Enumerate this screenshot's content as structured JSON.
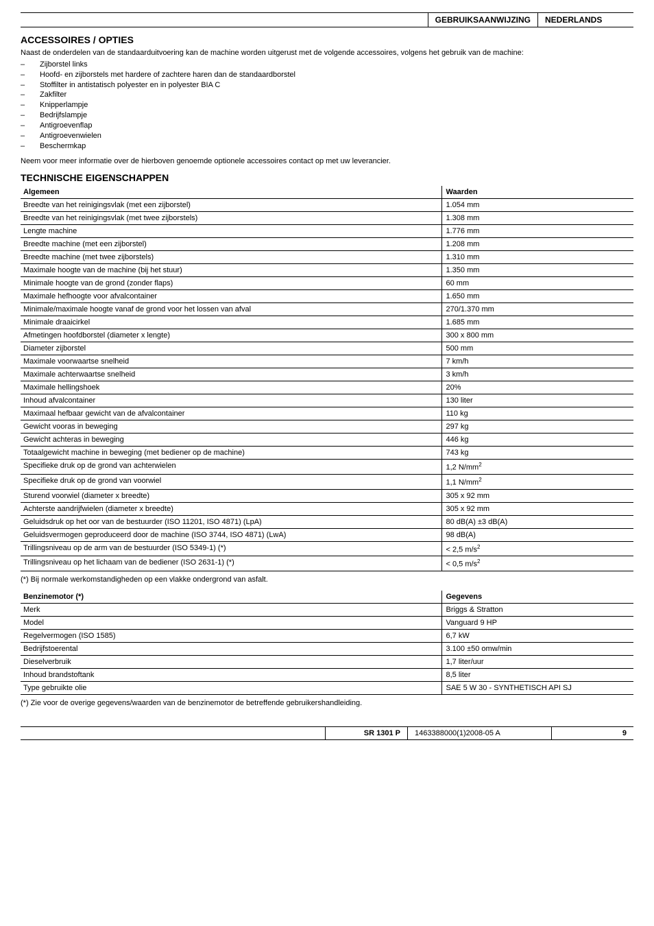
{
  "header": {
    "title1": "GEBRUIKSAANWIJZING",
    "title2": "NEDERLANDS"
  },
  "sections": {
    "accessories_title": "ACCESSOIRES / OPTIES",
    "accessories_intro": "Naast de onderdelen van de standaarduitvoering kan de machine worden uitgerust met de volgende accessoires, volgens het gebruik van de machine:",
    "accessories_items": [
      "Zijborstel links",
      "Hoofd- en zijborstels met hardere of zachtere haren dan de standaardborstel",
      "Stoffilter in antistatisch polyester en in polyester BIA C",
      "Zakfilter",
      "Knipperlampje",
      "Bedrijfslampje",
      "Antigroevenflap",
      "Antigroevenwielen",
      "Beschermkap"
    ],
    "accessories_note": "Neem voor meer informatie over de hierboven genoemde optionele accessoires contact op met uw leverancier.",
    "tech_title": "TECHNISCHE EIGENSCHAPPEN",
    "tech_head_label": "Algemeen",
    "tech_head_val": "Waarden",
    "tech_rows": [
      {
        "label": "Breedte van het reinigingsvlak (met een zijborstel)",
        "value": "1.054 mm"
      },
      {
        "label": "Breedte van het reinigingsvlak (met twee zijborstels)",
        "value": "1.308 mm"
      },
      {
        "label": "Lengte machine",
        "value": "1.776 mm"
      },
      {
        "label": "Breedte machine (met een zijborstel)",
        "value": "1.208 mm"
      },
      {
        "label": "Breedte machine (met twee zijborstels)",
        "value": "1.310 mm"
      },
      {
        "label": "Maximale hoogte van de machine (bij het stuur)",
        "value": "1.350 mm"
      },
      {
        "label": "Minimale hoogte van de grond (zonder flaps)",
        "value": "60 mm"
      },
      {
        "label": "Maximale hefhoogte voor afvalcontainer",
        "value": "1.650 mm"
      },
      {
        "label": "Minimale/maximale hoogte vanaf de grond voor het lossen van afval",
        "value": "270/1.370 mm"
      },
      {
        "label": "Minimale draaicirkel",
        "value": "1.685 mm"
      },
      {
        "label": "Afmetingen hoofdborstel (diameter x lengte)",
        "value": "300 x 800 mm"
      },
      {
        "label": "Diameter zijborstel",
        "value": "500 mm"
      },
      {
        "label": "Maximale voorwaartse snelheid",
        "value": "7 km/h"
      },
      {
        "label": "Maximale achterwaartse snelheid",
        "value": "3 km/h"
      },
      {
        "label": "Maximale hellingshoek",
        "value": "20%"
      },
      {
        "label": "Inhoud afvalcontainer",
        "value": "130 liter"
      },
      {
        "label": "Maximaal hefbaar gewicht van de afvalcontainer",
        "value": "110 kg"
      },
      {
        "label": "Gewicht vooras in beweging",
        "value": "297 kg"
      },
      {
        "label": "Gewicht achteras in beweging",
        "value": "446 kg"
      },
      {
        "label": "Totaalgewicht machine in beweging (met bediener op de machine)",
        "value": "743 kg"
      },
      {
        "label": "Specifieke druk op de grond van achterwielen",
        "value": "1,2 N/mm",
        "sup": "2"
      },
      {
        "label": "Specifieke druk op de grond van voorwiel",
        "value": "1,1 N/mm",
        "sup": "2"
      },
      {
        "label": "Sturend voorwiel (diameter x breedte)",
        "value": "305 x 92 mm"
      },
      {
        "label": "Achterste aandrijfwielen (diameter x breedte)",
        "value": "305 x 92 mm"
      },
      {
        "label": "Geluidsdruk op het oor van de bestuurder (ISO 11201, ISO 4871) (LpA)",
        "value": "80 dB(A) ±3 dB(A)"
      },
      {
        "label": "Geluidsvermogen geproduceerd door de machine (ISO 3744, ISO 4871) (LwA)",
        "value": "98 dB(A)"
      },
      {
        "label": "Trillingsniveau op de arm van de bestuurder (ISO 5349-1) (*)",
        "value": "< 2,5 m/s",
        "sup": "2"
      },
      {
        "label": "Trillingsniveau op het lichaam van de bediener (ISO 2631-1) (*)",
        "value": "< 0,5 m/s",
        "sup": "2"
      }
    ],
    "tech_footnote": "(*)   Bij normale werkomstandigheden op een vlakke ondergrond van asfalt.",
    "engine_head_label": "Benzinemotor (*)",
    "engine_head_val": "Gegevens",
    "engine_rows": [
      {
        "label": "Merk",
        "value": "Briggs & Stratton"
      },
      {
        "label": "Model",
        "value": "Vanguard 9 HP"
      },
      {
        "label": "Regelvermogen (ISO 1585)",
        "value": "6,7 kW"
      },
      {
        "label": "Bedrijfstoerental",
        "value": "3.100 ±50 omw/min"
      },
      {
        "label": "Dieselverbruik",
        "value": "1,7 liter/uur"
      },
      {
        "label": "Inhoud brandstoftank",
        "value": "8,5 liter"
      },
      {
        "label": "Type gebruikte olie",
        "value": "SAE 5 W 30 - SYNTHETISCH API SJ"
      }
    ],
    "engine_footnote": "(*)   Zie voor de overige gegevens/waarden van de benzinemotor de betreffende gebruikershandleiding."
  },
  "footer": {
    "model": "SR 1301 P",
    "docnum": "1463388000(1)2008-05 A",
    "page": "9"
  }
}
